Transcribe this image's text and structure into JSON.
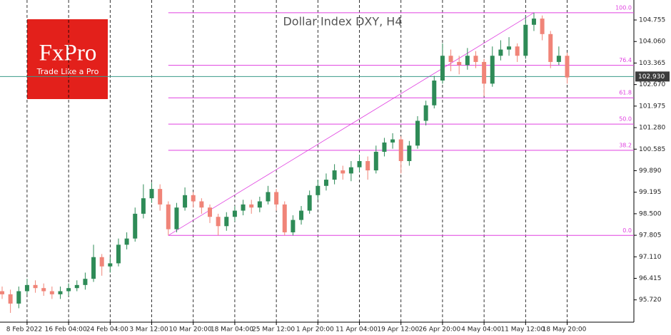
{
  "chart_data": {
    "type": "candlestick",
    "title": "Dollar Index DXY, H4",
    "logo": {
      "brand": "FxPro",
      "tagline": "Trade Like a Pro"
    },
    "categories": [
      null,
      null,
      null,
      "8 Feb 2022",
      null,
      null,
      null,
      null,
      "16 Feb 04:00",
      null,
      null,
      null,
      null,
      "24 Feb 04:00",
      null,
      null,
      null,
      null,
      "3 Mar 12:00",
      null,
      null,
      null,
      null,
      "10 Mar 20:00",
      null,
      null,
      null,
      null,
      "18 Mar 04:00",
      null,
      null,
      null,
      null,
      "25 Mar 12:00",
      null,
      null,
      null,
      null,
      "1 Apr 20:00",
      null,
      null,
      null,
      null,
      "11 Apr 04:00",
      null,
      null,
      null,
      null,
      "19 Apr 12:00",
      null,
      null,
      null,
      null,
      "26 Apr 20:00",
      null,
      null,
      null,
      null,
      "4 May 04:00",
      null,
      null,
      null,
      null,
      "11 May 12:00",
      null,
      null,
      null,
      null,
      "18 May 20:00"
    ],
    "open": [
      96.0,
      95.9,
      95.6,
      96.0,
      96.2,
      96.1,
      96.0,
      95.9,
      96.0,
      96.1,
      96.2,
      96.4,
      97.1,
      96.8,
      96.9,
      97.5,
      97.7,
      98.5,
      99.0,
      99.3,
      98.8,
      98.0,
      98.7,
      99.1,
      98.9,
      98.7,
      98.4,
      98.1,
      98.4,
      98.6,
      98.8,
      98.7,
      98.9,
      99.2,
      98.8,
      97.9,
      98.3,
      98.6,
      99.1,
      99.4,
      99.6,
      99.9,
      99.8,
      100.0,
      100.2,
      99.9,
      100.5,
      100.8,
      100.9,
      100.2,
      100.7,
      101.5,
      102.0,
      102.8,
      103.6,
      103.4,
      103.3,
      103.6,
      103.4,
      102.7,
      103.6,
      103.8,
      103.9,
      103.6,
      104.6,
      104.8,
      104.3,
      103.4,
      103.6
    ],
    "high": [
      96.15,
      96.05,
      96.15,
      96.4,
      96.35,
      96.25,
      96.15,
      96.15,
      96.25,
      96.35,
      96.6,
      97.5,
      97.2,
      97.1,
      97.7,
      97.9,
      98.7,
      99.45,
      99.5,
      99.45,
      98.9,
      98.85,
      99.35,
      99.2,
      99.0,
      98.8,
      98.5,
      98.55,
      98.75,
      98.95,
      98.95,
      99.05,
      99.4,
      99.3,
      98.9,
      98.45,
      98.75,
      99.25,
      99.6,
      99.8,
      100.1,
      100.05,
      100.2,
      100.4,
      100.35,
      100.7,
      100.95,
      101.1,
      101.0,
      100.85,
      101.65,
      102.15,
      102.95,
      104.0,
      103.8,
      103.6,
      103.85,
      103.75,
      103.5,
      103.9,
      104.1,
      104.2,
      104.0,
      104.9,
      104.99,
      104.9,
      104.4,
      103.9,
      103.7
    ],
    "low": [
      95.75,
      95.3,
      95.45,
      95.9,
      95.95,
      95.85,
      95.75,
      95.75,
      95.85,
      96.0,
      96.05,
      96.3,
      96.5,
      96.6,
      96.8,
      97.35,
      97.6,
      98.35,
      98.85,
      98.6,
      97.8,
      97.9,
      98.6,
      98.7,
      98.5,
      98.2,
      97.8,
      97.95,
      98.25,
      98.45,
      98.5,
      98.55,
      98.8,
      98.6,
      97.8,
      97.8,
      98.15,
      98.5,
      98.95,
      99.25,
      99.45,
      99.6,
      99.55,
      99.85,
      99.6,
      99.8,
      100.35,
      100.6,
      99.8,
      100.05,
      100.6,
      101.35,
      101.9,
      102.7,
      103.1,
      103.0,
      103.15,
      103.2,
      102.3,
      102.6,
      103.45,
      103.6,
      103.4,
      103.5,
      104.4,
      104.1,
      103.2,
      103.3,
      102.7
    ],
    "close": [
      95.9,
      95.6,
      96.0,
      96.2,
      96.1,
      96.0,
      95.9,
      96.0,
      96.1,
      96.2,
      96.4,
      97.1,
      96.8,
      96.9,
      97.5,
      97.7,
      98.5,
      99.0,
      99.3,
      98.8,
      98.0,
      98.7,
      99.1,
      98.9,
      98.7,
      98.4,
      98.1,
      98.4,
      98.6,
      98.8,
      98.7,
      98.9,
      99.2,
      98.8,
      97.9,
      98.3,
      98.6,
      99.1,
      99.4,
      99.6,
      99.9,
      99.8,
      100.0,
      100.2,
      99.9,
      100.5,
      100.8,
      100.9,
      100.2,
      100.7,
      101.5,
      102.0,
      102.8,
      103.6,
      103.4,
      103.3,
      103.6,
      103.4,
      102.7,
      103.6,
      103.8,
      103.9,
      103.6,
      104.6,
      104.8,
      104.3,
      103.4,
      103.6,
      102.9
    ],
    "up_color": "#2e8b57",
    "down_color": "#f08478",
    "ylim": [
      95.0,
      105.4
    ],
    "yticks": [
      104.755,
      {
        "value": 104.06,
        "label": "104.060"
      },
      103.365,
      {
        "value": 102.67,
        "label": "102.670"
      },
      101.975,
      {
        "value": 101.28,
        "label": "101.280"
      },
      100.585,
      {
        "value": 99.89,
        "label": "99.890"
      },
      99.195,
      {
        "value": 98.5,
        "label": "98.500"
      },
      97.805,
      {
        "value": 97.11,
        "label": "97.110"
      },
      96.415,
      {
        "value": 95.72,
        "label": "95.720"
      }
    ],
    "current_price": {
      "value": 102.93,
      "label": "102.930"
    },
    "fibonacci": {
      "high": 104.99,
      "low": 97.8,
      "color": "#e040e0",
      "levels": [
        {
          "value": 100,
          "label": "100.0"
        },
        {
          "value": 76.4,
          "label": "76.4"
        },
        {
          "value": 61.8,
          "label": "61.8"
        },
        {
          "value": 50,
          "label": "50.0"
        },
        {
          "value": 38.2,
          "label": "38.2"
        },
        {
          "value": 0,
          "label": "0.0"
        }
      ]
    }
  }
}
